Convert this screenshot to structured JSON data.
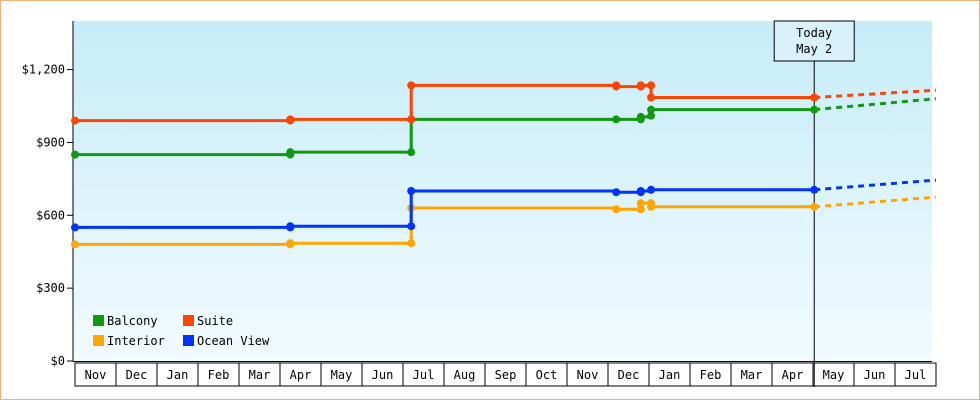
{
  "chart_data": {
    "type": "line",
    "line_style": "step",
    "title": "",
    "xlabel": "",
    "ylabel": "",
    "ylim": [
      0,
      1400
    ],
    "y_ticks": [
      "$0",
      "$300",
      "$600",
      "$900",
      "$1,200"
    ],
    "y_tick_values": [
      0,
      300,
      600,
      900,
      1200
    ],
    "x_month_labels": [
      "Nov",
      "Dec",
      "Jan",
      "Feb",
      "Mar",
      "Apr",
      "May",
      "Jun",
      "Jul",
      "Aug",
      "Sep",
      "Oct",
      "Nov",
      "Dec",
      "Jan",
      "Feb",
      "Mar",
      "Apr",
      "May",
      "Jun",
      "Jul"
    ],
    "x_unit": "month index (0 = first Nov shown)",
    "today": {
      "label_line1": "Today",
      "label_line2": "May 2",
      "x": 18.03
    },
    "grid": false,
    "background": "light blue gradient",
    "legend_position": "bottom-left",
    "series": [
      {
        "name": "Balcony",
        "color": "#119911",
        "points": [
          [
            0,
            850
          ],
          [
            5.25,
            850
          ],
          [
            5.25,
            860
          ],
          [
            8.2,
            860
          ],
          [
            8.2,
            995
          ],
          [
            13.2,
            995
          ],
          [
            13.2,
            995
          ],
          [
            13.8,
            995
          ],
          [
            13.8,
            1005
          ],
          [
            14.05,
            1005
          ],
          [
            14.05,
            1010
          ],
          [
            14.05,
            1035
          ],
          [
            18.03,
            1035
          ]
        ],
        "markers": [
          [
            0,
            850
          ],
          [
            5.25,
            850
          ],
          [
            5.25,
            860
          ],
          [
            8.2,
            860
          ],
          [
            8.2,
            995
          ],
          [
            13.2,
            995
          ],
          [
            13.8,
            995
          ],
          [
            13.8,
            1005
          ],
          [
            14.05,
            1010
          ],
          [
            14.05,
            1035
          ],
          [
            18.03,
            1035
          ]
        ],
        "projection": [
          [
            18.03,
            1035
          ],
          [
            21,
            1080
          ]
        ]
      },
      {
        "name": "Suite",
        "color": "#ff4400",
        "points": [
          [
            0,
            990
          ],
          [
            5.25,
            990
          ],
          [
            5.25,
            995
          ],
          [
            8.2,
            995
          ],
          [
            8.2,
            1135
          ],
          [
            13.2,
            1135
          ],
          [
            13.2,
            1130
          ],
          [
            13.8,
            1130
          ],
          [
            13.8,
            1135
          ],
          [
            14.05,
            1135
          ],
          [
            14.05,
            1085
          ],
          [
            18.03,
            1085
          ]
        ],
        "markers": [
          [
            0,
            990
          ],
          [
            5.25,
            990
          ],
          [
            5.25,
            995
          ],
          [
            8.2,
            995
          ],
          [
            8.2,
            1135
          ],
          [
            13.2,
            1135
          ],
          [
            13.2,
            1130
          ],
          [
            13.8,
            1130
          ],
          [
            13.8,
            1135
          ],
          [
            14.05,
            1135
          ],
          [
            14.05,
            1085
          ],
          [
            18.03,
            1085
          ]
        ],
        "projection": [
          [
            18.03,
            1085
          ],
          [
            21,
            1115
          ]
        ]
      },
      {
        "name": "Interior",
        "color": "#ffa500",
        "points": [
          [
            0,
            480
          ],
          [
            5.25,
            480
          ],
          [
            5.25,
            485
          ],
          [
            8.2,
            485
          ],
          [
            8.2,
            630
          ],
          [
            13.2,
            630
          ],
          [
            13.2,
            625
          ],
          [
            13.8,
            625
          ],
          [
            13.8,
            650
          ],
          [
            14.05,
            650
          ],
          [
            14.05,
            635
          ],
          [
            18.03,
            635
          ]
        ],
        "markers": [
          [
            0,
            480
          ],
          [
            5.25,
            480
          ],
          [
            5.25,
            485
          ],
          [
            8.2,
            485
          ],
          [
            8.2,
            630
          ],
          [
            13.2,
            625
          ],
          [
            13.8,
            625
          ],
          [
            13.8,
            650
          ],
          [
            14.05,
            650
          ],
          [
            14.05,
            635
          ],
          [
            18.03,
            635
          ]
        ],
        "projection": [
          [
            18.03,
            635
          ],
          [
            21,
            675
          ]
        ]
      },
      {
        "name": "Ocean View",
        "color": "#0033ff",
        "points": [
          [
            0,
            550
          ],
          [
            5.25,
            550
          ],
          [
            5.25,
            555
          ],
          [
            8.2,
            555
          ],
          [
            8.2,
            700
          ],
          [
            13.2,
            700
          ],
          [
            13.2,
            695
          ],
          [
            13.8,
            695
          ],
          [
            13.8,
            700
          ],
          [
            14.05,
            700
          ],
          [
            14.05,
            705
          ],
          [
            18.03,
            705
          ]
        ],
        "markers": [
          [
            0,
            550
          ],
          [
            5.25,
            550
          ],
          [
            5.25,
            555
          ],
          [
            8.2,
            555
          ],
          [
            8.2,
            700
          ],
          [
            13.2,
            695
          ],
          [
            13.8,
            695
          ],
          [
            13.8,
            700
          ],
          [
            14.05,
            705
          ],
          [
            18.03,
            705
          ]
        ],
        "projection": [
          [
            18.03,
            705
          ],
          [
            21,
            745
          ]
        ]
      }
    ],
    "legend": [
      {
        "label": "Balcony",
        "color": "#119911"
      },
      {
        "label": "Suite",
        "color": "#ff4400"
      },
      {
        "label": "Interior",
        "color": "#ffa500"
      },
      {
        "label": "Ocean View",
        "color": "#0033ff"
      }
    ]
  }
}
